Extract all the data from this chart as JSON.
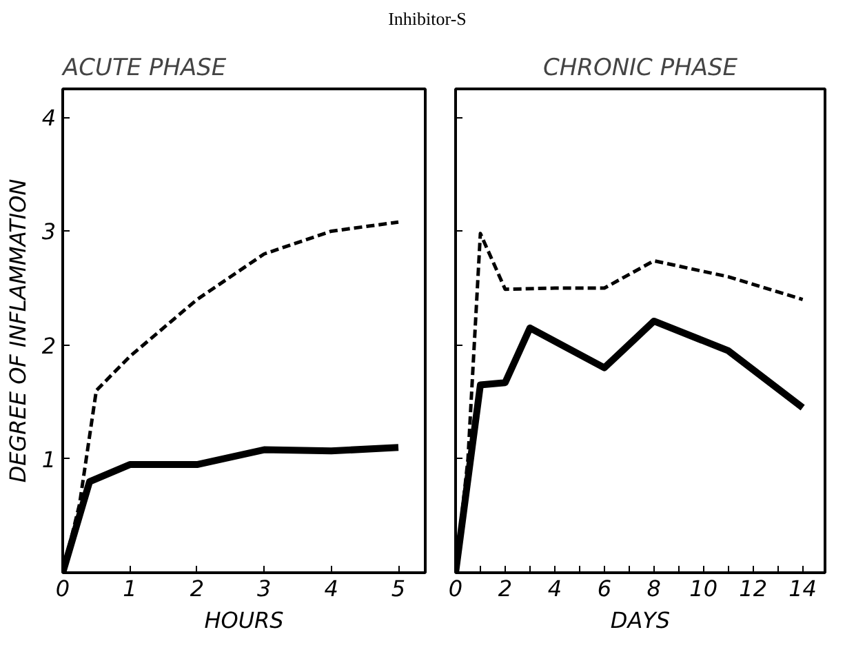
{
  "chart_data": [
    {
      "type": "line",
      "title": "ACUTE PHASE",
      "annotations": [
        "Inhibitor-S"
      ],
      "xlabel": "HOURS",
      "ylabel": "DEGREE OF INFLAMMATION",
      "xlim": [
        0,
        5.4
      ],
      "ylim": [
        0,
        4.25
      ],
      "xticks": [
        0,
        1,
        2,
        3,
        4,
        5
      ],
      "yticks": [
        {
          "value": 0,
          "label": null
        },
        1,
        2,
        3,
        4
      ],
      "grid": false,
      "marker": "none",
      "series": [
        {
          "color": "#000000",
          "line_style": "dashed",
          "x": [
            0,
            0.25,
            0.5,
            1,
            2,
            3,
            4,
            5
          ],
          "values": [
            0,
            0.6,
            1.6,
            1.9,
            2.4,
            2.8,
            3.0,
            3.08
          ]
        },
        {
          "color": "#000000",
          "line_style": "solid",
          "x": [
            0,
            0.4,
            1,
            2,
            3,
            4,
            5
          ],
          "values": [
            0,
            0.8,
            0.95,
            0.95,
            1.08,
            1.07,
            1.1
          ]
        }
      ]
    },
    {
      "type": "line",
      "title": "CHRONIC PHASE",
      "xlabel": "DAYS",
      "xlim": [
        0,
        14.9
      ],
      "ylim": [
        0,
        4.25
      ],
      "tick_labels": "x",
      "xticks": [
        0,
        {
          "value": 1,
          "label": null
        },
        2,
        {
          "value": 3,
          "label": null
        },
        4,
        {
          "value": 5,
          "label": null
        },
        6,
        {
          "value": 7,
          "label": null
        },
        8,
        {
          "value": 9,
          "label": null
        },
        10,
        {
          "value": 11,
          "label": null
        },
        12,
        {
          "value": 13,
          "label": null
        },
        14
      ],
      "yticks": [
        0,
        1,
        2,
        3,
        4
      ],
      "grid": false,
      "marker": "none",
      "series": [
        {
          "color": "#000000",
          "line_style": "dashed",
          "x": [
            0,
            0.5,
            1,
            2,
            4,
            6,
            8,
            11,
            14
          ],
          "values": [
            0,
            1.0,
            2.98,
            2.49,
            2.5,
            2.5,
            2.74,
            2.6,
            2.4
          ]
        },
        {
          "color": "#000000",
          "line_style": "solid",
          "x": [
            0,
            1,
            2,
            3,
            6,
            8,
            11,
            14
          ],
          "values": [
            0,
            1.65,
            1.67,
            2.15,
            1.8,
            2.21,
            1.95,
            1.45
          ]
        }
      ]
    }
  ]
}
